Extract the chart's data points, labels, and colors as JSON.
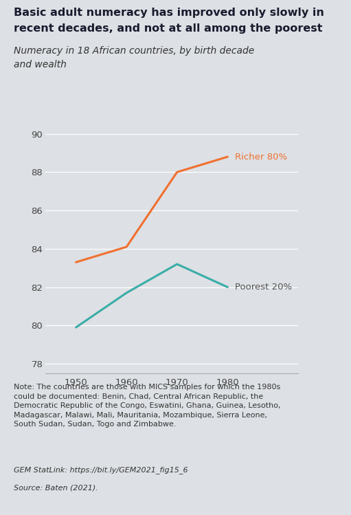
{
  "title_line1": "Basic adult numeracy has improved only slowly in",
  "title_line2": "recent decades, and not at all among the poorest",
  "subtitle": "Numeracy in 18 African countries, by birth decade\nand wealth",
  "background_color": "#dde0e4",
  "plot_bg_color": "#dde0e4",
  "x_values": [
    1950,
    1960,
    1970,
    1980
  ],
  "richer_values": [
    83.3,
    84.1,
    88.0,
    88.8
  ],
  "poorest_values": [
    79.9,
    81.7,
    83.2,
    82.0
  ],
  "richer_color": "#f07030",
  "poorest_color": "#3aada8",
  "poorest_label_color": "#555555",
  "richer_label": "Richer 80%",
  "poorest_label": "Poorest 20%",
  "ylim": [
    77.5,
    90.8
  ],
  "yticks": [
    78,
    80,
    82,
    84,
    86,
    88,
    90
  ],
  "xticks": [
    1950,
    1960,
    1970,
    1980
  ],
  "line_width": 2.2,
  "title_fontsize": 11.5,
  "subtitle_fontsize": 10,
  "axis_fontsize": 9.5,
  "label_fontsize": 9.5,
  "note_text": "Note: The countries are those with MICS samples for which the 1980s\ncould be documented: Benin, Chad, Central African Republic, the\nDemocratic Republic of the Congo, Eswatini, Ghana, Guinea, Lesotho,\nMadagascar, Malawi, Mali, Mauritania, Mozambique, Sierra Leone,\nSouth Sudan, Sudan, Togo and Zimbabwe.",
  "statlink_text": "GEM StatLink: https://bit.ly/GEM2021_fig15_6",
  "source_text": "Source: Baten (2021)."
}
